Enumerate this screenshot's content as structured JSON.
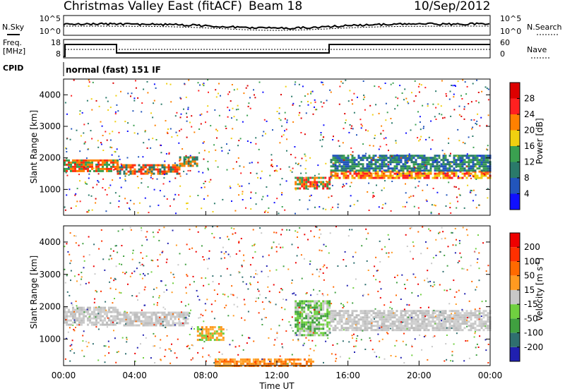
{
  "header": {
    "station": "Christmas Valley East (fitACF)",
    "beam": "Beam 18",
    "date": "10/Sep/2012"
  },
  "top_panel": {
    "left_label": "N.Sky",
    "right_label": "N.Search",
    "left_ticks": [
      "10^5",
      "10^0"
    ],
    "right_ticks": [
      "10^5",
      "10^0"
    ]
  },
  "freq_panel": {
    "left_label_1": "Freq.",
    "left_label_2": "[MHz]",
    "right_label": "Nave",
    "left_ticks": [
      "18",
      "8"
    ],
    "right_ticks": [
      "60",
      "0"
    ]
  },
  "cpid": {
    "label": "CPID",
    "value": "normal (fast) 151 IF"
  },
  "chart_data": [
    {
      "type": "heatmap",
      "name": "Power",
      "ylabel": "Slant Range [km]",
      "ylim": [
        180,
        4500
      ],
      "yticks": [
        "1000",
        "2000",
        "3000",
        "4000"
      ],
      "colorbar": {
        "label": "Power [dB]",
        "ticks": [
          "4",
          "8",
          "12",
          "16",
          "20",
          "24",
          "28"
        ],
        "colors": [
          "#1010ff",
          "#2255bb",
          "#2a7a6a",
          "#3aa050",
          "#f0d010",
          "#ff8000",
          "#ff2020",
          "#dd0000"
        ]
      },
      "bands": [
        {
          "t0": 0.0,
          "t1": 3.0,
          "y0": 1550,
          "y1": 1950,
          "colors": [
            "#ff3010",
            "#ff8000",
            "#3aa050"
          ]
        },
        {
          "t0": 3.0,
          "t1": 6.5,
          "y0": 1500,
          "y1": 1800,
          "colors": [
            "#ff3010",
            "#ff8000",
            "#2a7a6a"
          ]
        },
        {
          "t0": 6.5,
          "t1": 7.5,
          "y0": 1750,
          "y1": 2050,
          "colors": [
            "#3aa050",
            "#2a7a6a",
            "#ff8000"
          ]
        },
        {
          "t0": 13.0,
          "t1": 15.0,
          "y0": 1000,
          "y1": 1400,
          "colors": [
            "#ff2020",
            "#ff8000",
            "#3aa050"
          ]
        },
        {
          "t0": 15.0,
          "t1": 24.0,
          "y0": 1350,
          "y1": 1600,
          "colors": [
            "#ff2020",
            "#ff8000",
            "#f0d010"
          ]
        },
        {
          "t0": 15.0,
          "t1": 24.0,
          "y0": 1600,
          "y1": 2100,
          "colors": [
            "#3aa050",
            "#2a7a6a",
            "#2255bb"
          ]
        }
      ]
    },
    {
      "type": "heatmap",
      "name": "Velocity",
      "xlabel": "Time UT",
      "ylabel": "Slant Range [km]",
      "xlim": [
        0,
        24
      ],
      "xticks": [
        "00:00",
        "04:00",
        "08:00",
        "12:00",
        "16:00",
        "20:00",
        "00:00"
      ],
      "ylim": [
        180,
        4500
      ],
      "yticks": [
        "1000",
        "2000",
        "3000",
        "4000"
      ],
      "colorbar": {
        "label": "Velocity [m s^-1]",
        "ticks": [
          "200",
          "100",
          "50",
          "15",
          "-15",
          "-50",
          "-100",
          "-200"
        ],
        "colors": [
          "#2020b0",
          "#2f6f6f",
          "#40a040",
          "#70d040",
          "#c8c8c8",
          "#ff9a20",
          "#ff6a00",
          "#ff3000",
          "#ee0000"
        ]
      },
      "bands": [
        {
          "t0": 0.0,
          "t1": 3.0,
          "y0": 1450,
          "y1": 2000,
          "colors": [
            "#c8c8c8",
            "#bdbdbd",
            "#d0d0d0"
          ]
        },
        {
          "t0": 3.0,
          "t1": 7.0,
          "y0": 1450,
          "y1": 1850,
          "colors": [
            "#c8c8c8",
            "#bdbdbd",
            "#d0d0d0"
          ]
        },
        {
          "t0": 7.5,
          "t1": 9.0,
          "y0": 1000,
          "y1": 1400,
          "colors": [
            "#ff9a20",
            "#ffb040",
            "#70d040"
          ]
        },
        {
          "t0": 13.0,
          "t1": 15.0,
          "y0": 1100,
          "y1": 2200,
          "colors": [
            "#70d040",
            "#c8c8c8",
            "#40a040"
          ]
        },
        {
          "t0": 15.0,
          "t1": 24.0,
          "y0": 1300,
          "y1": 1900,
          "colors": [
            "#c8c8c8",
            "#bdbdbd",
            "#d0d0d0"
          ]
        },
        {
          "t0": 8.5,
          "t1": 14.0,
          "y0": 200,
          "y1": 400,
          "colors": [
            "#ff9a20",
            "#ffb040",
            "#ff6a00"
          ]
        }
      ]
    }
  ]
}
